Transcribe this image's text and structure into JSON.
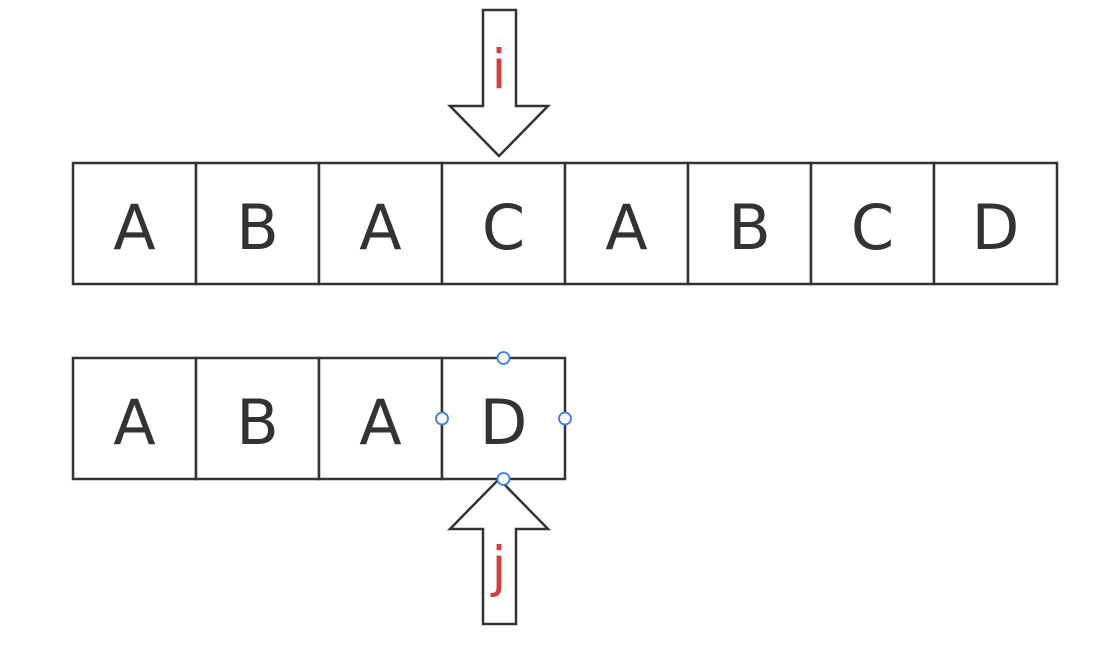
{
  "text_row": {
    "cells": [
      "A",
      "B",
      "A",
      "C",
      "A",
      "B",
      "C",
      "D"
    ]
  },
  "pattern_row": {
    "cells": [
      "A",
      "B",
      "A",
      "D"
    ],
    "selected_index": 3
  },
  "pointers": {
    "i_label": "i",
    "j_label": "j"
  },
  "colors": {
    "stroke": "#333333",
    "pointer_label": "#d33f3f",
    "selection_handle": "#3d7bdc"
  }
}
